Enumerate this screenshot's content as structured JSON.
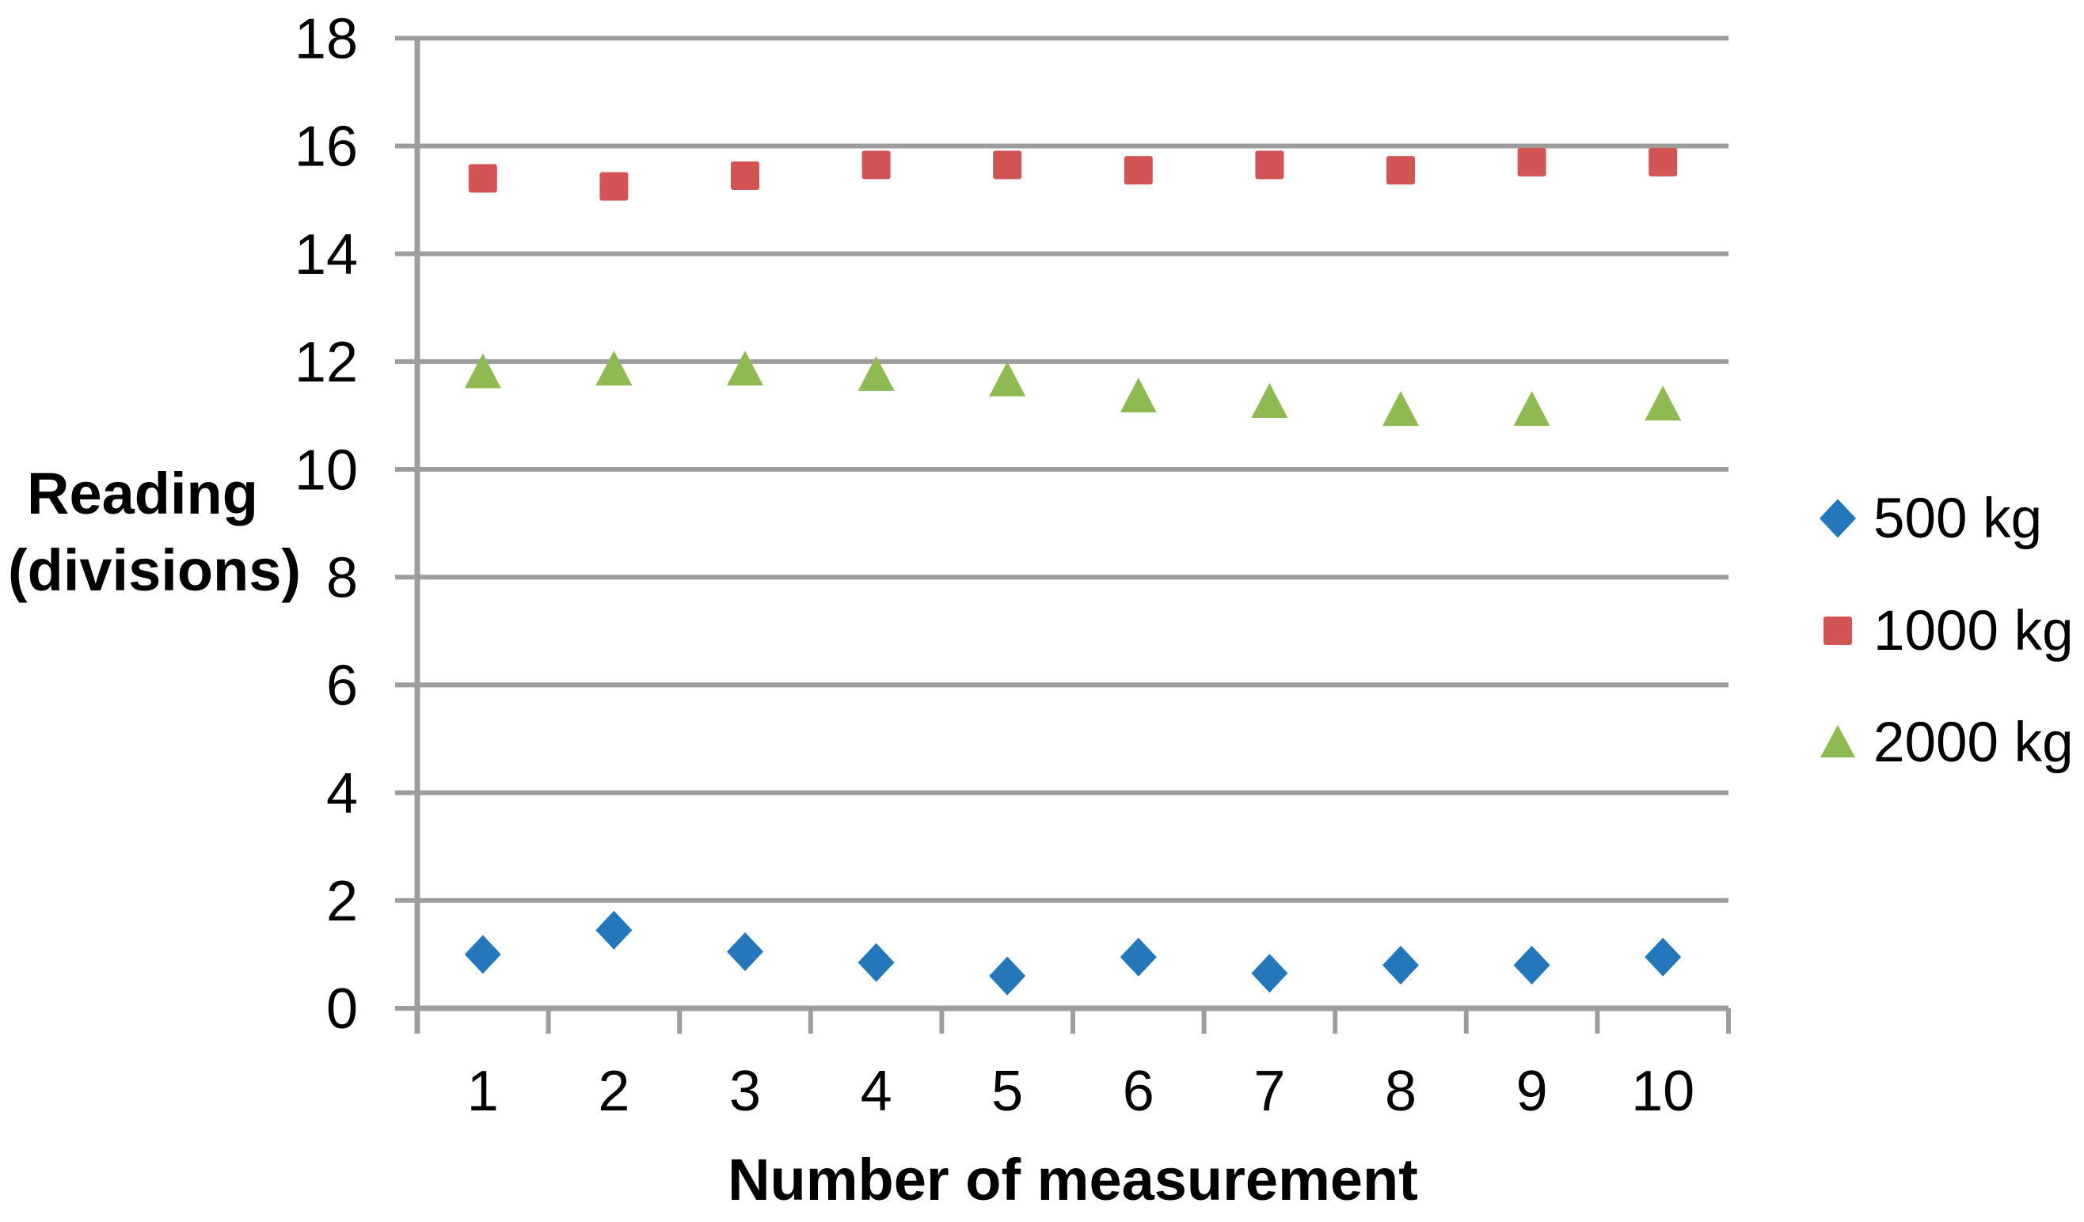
{
  "chart_data": {
    "type": "scatter",
    "title": "",
    "xlabel": "Number of measurement",
    "ylabel": "Reading (divisions)",
    "ylabel_lines": [
      "Reading",
      "(divisions)"
    ],
    "x": [
      1,
      2,
      3,
      4,
      5,
      6,
      7,
      8,
      9,
      10
    ],
    "x_tick_labels": [
      "1",
      "2",
      "3",
      "4",
      "5",
      "6",
      "7",
      "8",
      "9",
      "10"
    ],
    "y_ticks": [
      0,
      2,
      4,
      6,
      8,
      10,
      12,
      14,
      16,
      18
    ],
    "ylim": [
      0,
      18
    ],
    "grid": "horizontal",
    "legend_position": "right",
    "series": [
      {
        "name": "500 kg",
        "marker": "diamond",
        "color": "#2577BB",
        "values": [
          1.0,
          1.45,
          1.05,
          0.85,
          0.6,
          0.95,
          0.65,
          0.8,
          0.8,
          0.95
        ]
      },
      {
        "name": "1000 kg",
        "marker": "square",
        "color": "#D25454",
        "values": [
          15.4,
          15.25,
          15.45,
          15.65,
          15.65,
          15.55,
          15.65,
          15.55,
          15.7,
          15.7
        ]
      },
      {
        "name": "2000 kg",
        "marker": "triangle",
        "color": "#8FBA52",
        "values": [
          11.8,
          11.85,
          11.85,
          11.75,
          11.65,
          11.35,
          11.25,
          11.1,
          11.1,
          11.2
        ]
      }
    ]
  },
  "colors": {
    "gridline": "#9D9D9D",
    "axis": "#9D9D9D",
    "text": "#000000",
    "background": "#FFFFFF"
  }
}
